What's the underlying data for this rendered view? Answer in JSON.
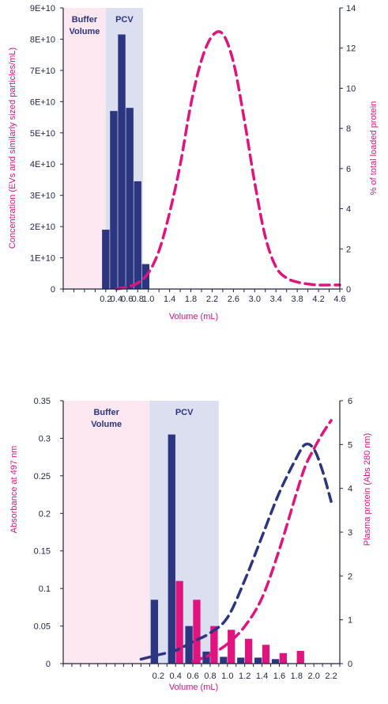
{
  "colors": {
    "navy": "#2b3580",
    "magenta": "#e0137f",
    "buffer_fill": "#fde7f0",
    "pcv_fill": "#dcdff0",
    "axis": "#1f2340"
  },
  "chart_data": [
    {
      "type": "bar",
      "xlabel": "Volume (mL)",
      "ylabel": "Concentration (EVs and similarly sized particles/mL)",
      "y2label": "% of total loaded protein",
      "xlim": [
        -0.6,
        4.6
      ],
      "ylim": [
        0,
        90000000000.0
      ],
      "y2lim": [
        0,
        14
      ],
      "x_ticks": [
        "0.2",
        "0.4",
        "0.6",
        "0.8",
        "1.0",
        "1.4",
        "1.8",
        "2.2",
        "2.6",
        "3.0",
        "3.4",
        "3.8",
        "4.2",
        "4.6"
      ],
      "x_tick_values": [
        0.2,
        0.4,
        0.6,
        0.8,
        1.0,
        1.4,
        1.8,
        2.2,
        2.6,
        3.0,
        3.4,
        3.8,
        4.2,
        4.6
      ],
      "y_ticks": [
        "0",
        "1E+10",
        "2E+10",
        "3E+10",
        "4E+10",
        "5E+10",
        "6E+10",
        "7E+10",
        "8E+10",
        "9E+10"
      ],
      "y_tick_values": [
        0,
        10000000000.0,
        20000000000.0,
        30000000000.0,
        40000000000.0,
        50000000000.0,
        60000000000.0,
        70000000000.0,
        80000000000.0,
        90000000000.0
      ],
      "y2_ticks": [
        "0",
        "2",
        "4",
        "6",
        "8",
        "10",
        "12",
        "14"
      ],
      "y2_tick_values": [
        0,
        2,
        4,
        6,
        8,
        10,
        12,
        14
      ],
      "regions": [
        {
          "label": "Buffer Volume",
          "label_lines": [
            "Buffer",
            "Volume"
          ],
          "x0": -0.6,
          "x1": 0.2,
          "color_key": "buffer_fill"
        },
        {
          "label": "PCV",
          "label_lines": [
            "PCV"
          ],
          "x0": 0.2,
          "x1": 0.9,
          "color_key": "pcv_fill"
        }
      ],
      "series": [
        {
          "kind": "bar",
          "axis": "y",
          "color_key": "navy",
          "bar_width": 0.14,
          "x": [
            0.2,
            0.35,
            0.5,
            0.65,
            0.8,
            0.95,
            1.1
          ],
          "values": [
            19000000000.0,
            57000000000.0,
            81500000000.0,
            58000000000.0,
            34500000000.0,
            8000000000.0,
            0
          ]
        },
        {
          "kind": "dashed-line",
          "axis": "y2",
          "color_key": "magenta",
          "x": [
            0.4,
            0.6,
            0.8,
            1.0,
            1.2,
            1.4,
            1.6,
            1.8,
            2.0,
            2.2,
            2.4,
            2.6,
            2.8,
            3.0,
            3.2,
            3.4,
            3.6,
            3.8,
            4.0,
            4.2,
            4.4,
            4.6
          ],
          "values": [
            0.0,
            0.1,
            0.3,
            0.8,
            1.9,
            3.8,
            6.2,
            9.2,
            11.4,
            12.6,
            12.7,
            11.3,
            8.5,
            5.3,
            2.6,
            1.1,
            0.55,
            0.35,
            0.25,
            0.2,
            0.2,
            0.2
          ]
        }
      ]
    },
    {
      "type": "bar",
      "xlabel": "Volume (mL)",
      "ylabel": "Absorbance at 497 nm",
      "y2label": "Plasma protein (Abs 280 nm)",
      "xlim": [
        -0.9,
        2.3
      ],
      "ylim": [
        0,
        0.35
      ],
      "y2lim": [
        0,
        6
      ],
      "x_ticks": [
        "0.2",
        "0.4",
        "0.6",
        "0.8",
        "1.0",
        "1.2",
        "1.4",
        "1.6",
        "1.8",
        "2.0",
        "2.2"
      ],
      "x_tick_values": [
        0.2,
        0.4,
        0.6,
        0.8,
        1.0,
        1.2,
        1.4,
        1.6,
        1.8,
        2.0,
        2.2
      ],
      "y_ticks": [
        "0",
        "0.05",
        "0.1",
        "0.15",
        "0.2",
        "0.25",
        "0.3",
        "0.35"
      ],
      "y_tick_values": [
        0,
        0.05,
        0.1,
        0.15,
        0.2,
        0.25,
        0.3,
        0.35
      ],
      "y2_ticks": [
        "0",
        "1",
        "2",
        "3",
        "4",
        "5",
        "6"
      ],
      "y2_tick_values": [
        0,
        1,
        2,
        3,
        4,
        5,
        6
      ],
      "regions": [
        {
          "label": "Buffer Volume",
          "label_lines": [
            "Buffer",
            "Volume"
          ],
          "x0": -0.9,
          "x1": 0.1,
          "color_key": "buffer_fill"
        },
        {
          "label": "PCV",
          "label_lines": [
            "PCV"
          ],
          "x0": 0.1,
          "x1": 0.9,
          "color_key": "pcv_fill"
        }
      ],
      "series": [
        {
          "kind": "bar",
          "axis": "y",
          "color_key": "navy",
          "bar_width": 0.085,
          "offset": -0.045,
          "x": [
            0.2,
            0.4,
            0.6,
            0.8,
            1.0,
            1.2,
            1.4,
            1.6,
            1.8
          ],
          "values": [
            0.085,
            0.305,
            0.05,
            0.016,
            0.009,
            0.008,
            0.008,
            0.006,
            0.0
          ]
        },
        {
          "kind": "bar",
          "axis": "y",
          "color_key": "magenta",
          "bar_width": 0.085,
          "offset": 0.045,
          "x": [
            0.2,
            0.4,
            0.6,
            0.8,
            1.0,
            1.2,
            1.4,
            1.6,
            1.8
          ],
          "values": [
            0.0,
            0.11,
            0.085,
            0.05,
            0.045,
            0.033,
            0.025,
            0.014,
            0.017
          ]
        },
        {
          "kind": "dashed-line",
          "axis": "y2",
          "color_key": "navy",
          "x": [
            0.0,
            0.2,
            0.4,
            0.6,
            0.8,
            1.0,
            1.2,
            1.4,
            1.6,
            1.8,
            1.9,
            2.0,
            2.1,
            2.2
          ],
          "values": [
            0.1,
            0.2,
            0.3,
            0.5,
            0.7,
            1.05,
            1.9,
            2.9,
            3.9,
            4.7,
            5.0,
            4.9,
            4.4,
            3.7
          ]
        },
        {
          "kind": "dashed-line",
          "axis": "y2",
          "color_key": "magenta",
          "x": [
            0.6,
            0.8,
            1.0,
            1.2,
            1.4,
            1.6,
            1.8,
            1.9,
            2.0,
            2.1,
            2.2
          ],
          "values": [
            0.05,
            0.2,
            0.45,
            0.85,
            1.5,
            2.6,
            3.9,
            4.5,
            4.9,
            5.25,
            5.55
          ]
        }
      ]
    }
  ]
}
